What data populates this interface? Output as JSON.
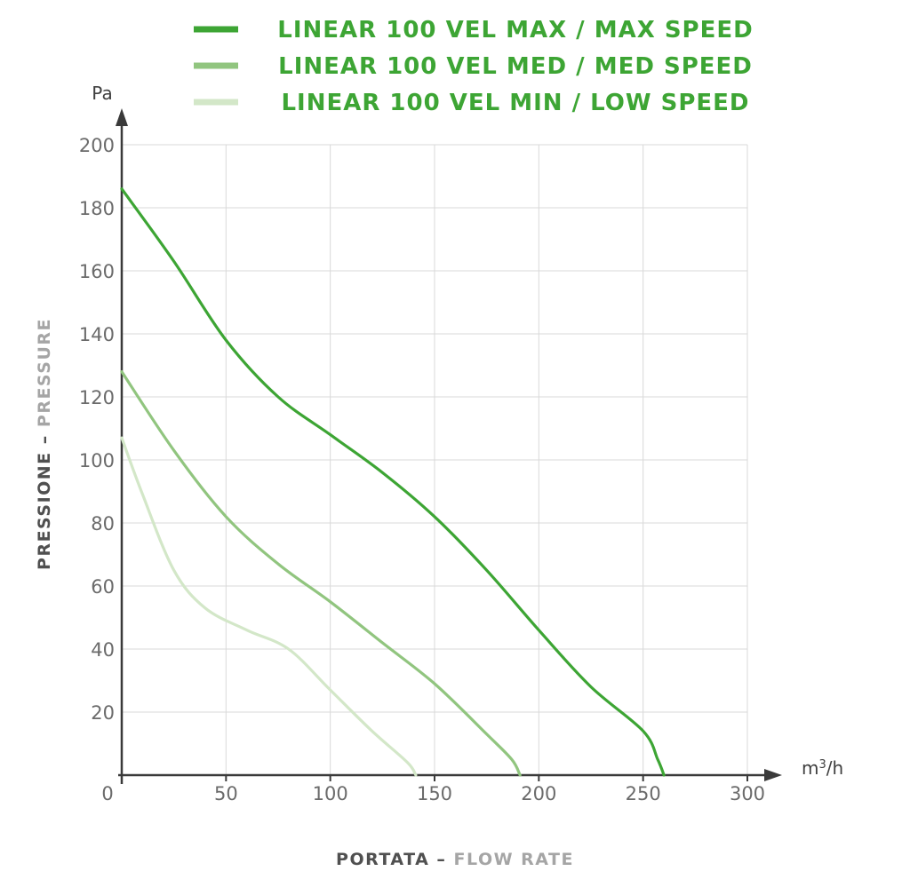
{
  "chart_data": {
    "type": "line",
    "xlabel_main": "PORTATA",
    "xlabel_separator": " – ",
    "xlabel_secondary": "FLOW RATE",
    "ylabel_main": "PRESSIONE",
    "ylabel_separator": " – ",
    "ylabel_secondary": "PRESSURE",
    "x_unit_base": "m",
    "x_unit_exp": "3",
    "x_unit_tail": "/h",
    "y_unit": "Pa",
    "origin_label": "0",
    "xlim": [
      0,
      300
    ],
    "ylim": [
      0,
      200
    ],
    "x_ticks": [
      50,
      100,
      150,
      200,
      250,
      300
    ],
    "x_tick_labels": [
      "50",
      "100",
      "150",
      "200",
      "250",
      "300"
    ],
    "y_ticks": [
      20,
      40,
      60,
      80,
      100,
      120,
      140,
      160,
      180,
      200
    ],
    "y_tick_labels": [
      "20",
      "40",
      "60",
      "80",
      "100",
      "120",
      "140",
      "160",
      "180",
      "200"
    ],
    "grid": true,
    "legend_position": "top",
    "series": [
      {
        "name": "LINEAR 100 VEL MAX / MAX SPEED",
        "color": "#3da534",
        "x": [
          0,
          25,
          50,
          75,
          100,
          125,
          150,
          175,
          200,
          225,
          250,
          257,
          260
        ],
        "y": [
          186,
          163,
          138,
          120,
          108,
          96,
          82,
          65,
          46,
          28,
          14,
          5,
          0
        ]
      },
      {
        "name": "LINEAR 100 VEL MED / MED SPEED",
        "color": "#91c57f",
        "x": [
          0,
          25,
          50,
          75,
          100,
          125,
          150,
          175,
          187,
          191
        ],
        "y": [
          128,
          103,
          82,
          67,
          55,
          42,
          29,
          13,
          5,
          0
        ]
      },
      {
        "name": "LINEAR 100 VEL MIN / LOW SPEED",
        "color": "#d3e7c8",
        "x": [
          0,
          10,
          25,
          40,
          60,
          80,
          100,
          120,
          137,
          141
        ],
        "y": [
          107,
          89,
          65,
          53,
          46,
          40,
          27,
          14,
          4,
          0
        ]
      }
    ]
  }
}
